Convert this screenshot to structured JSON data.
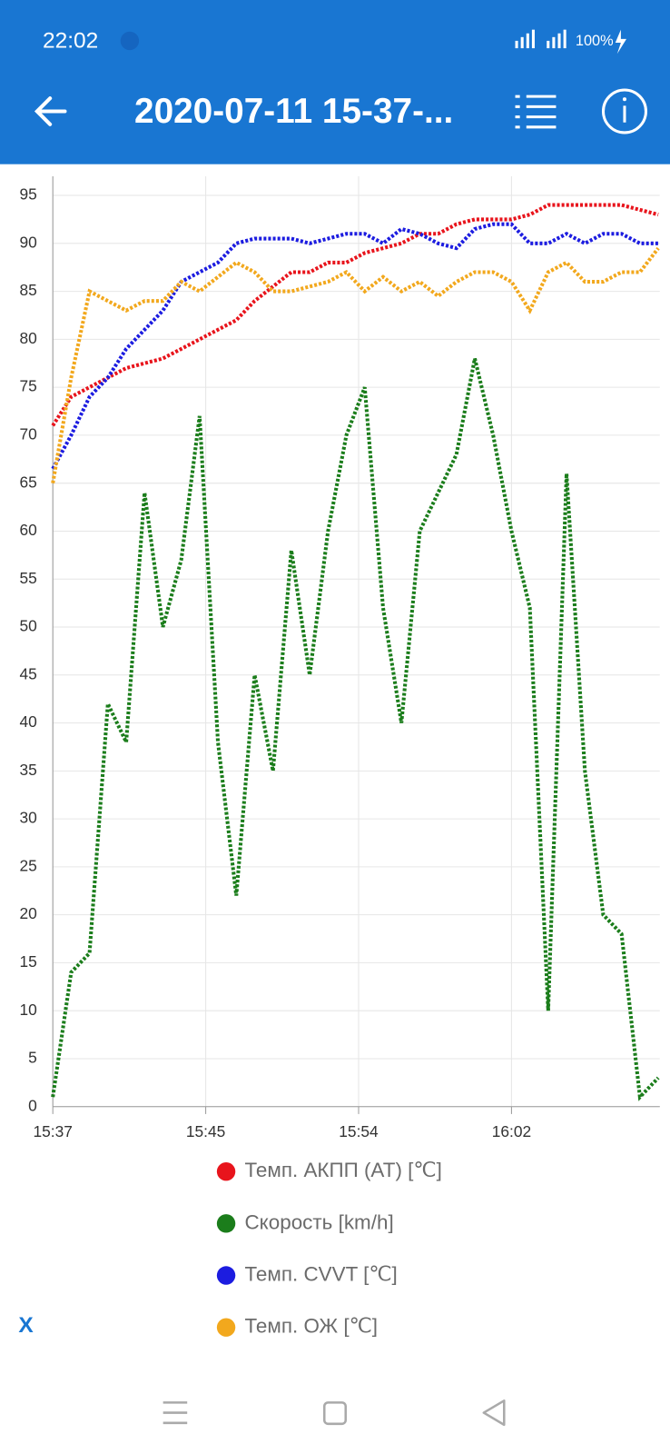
{
  "status_bar": {
    "time": "22:02",
    "battery": "100%"
  },
  "header": {
    "title": "2020-07-11 15-37-..."
  },
  "chart_data": {
    "type": "line",
    "x": [
      "15:37:30",
      "15:38:30",
      "15:39:30",
      "15:40:30",
      "15:41:30",
      "15:42:30",
      "15:43:30",
      "15:44:30",
      "15:45:30",
      "15:46:30",
      "15:47:30",
      "15:48:30",
      "15:49:30",
      "15:50:30",
      "15:51:30",
      "15:52:30",
      "15:53:30",
      "15:54:30",
      "15:55:30",
      "15:56:30",
      "15:57:30",
      "15:58:30",
      "15:59:30",
      "16:00:30",
      "16:01:30",
      "16:02:30",
      "16:03:30",
      "16:04:30",
      "16:05:30",
      "16:06:30",
      "16:07:30",
      "16:08:30",
      "16:09:30",
      "16:10:30"
    ],
    "series": [
      {
        "name": "Темп. АКПП (AT) [℃]",
        "color": "#e8141c",
        "values": [
          71,
          74,
          75,
          76,
          77,
          77.5,
          78,
          79,
          80,
          81,
          82,
          84,
          85.5,
          87,
          87,
          88,
          88,
          89,
          89.5,
          90,
          91,
          91,
          92,
          92.5,
          92.5,
          92.5,
          93,
          94,
          94,
          94,
          94,
          94,
          93.5,
          93
        ]
      },
      {
        "name": "Скорость [km/h]",
        "color": "#1b7d1b",
        "values": [
          1,
          14,
          16,
          42,
          38,
          64,
          50,
          57,
          72,
          38,
          22,
          45,
          35,
          58,
          45,
          60,
          70,
          75,
          52,
          40,
          60,
          64,
          68,
          78,
          70,
          60,
          52,
          10,
          66,
          35,
          20,
          18,
          1,
          3
        ]
      },
      {
        "name": "Темп. CVVT [℃]",
        "color": "#1c1ce0",
        "values": [
          66.5,
          70,
          74,
          76,
          79,
          81,
          83,
          86,
          87,
          88,
          90,
          90.5,
          90.5,
          90.5,
          90,
          90.5,
          91,
          91,
          90,
          91.5,
          91,
          90,
          89.5,
          91.5,
          92,
          92,
          90,
          90,
          91,
          90,
          91,
          91,
          90,
          90
        ]
      },
      {
        "name": "Темп. ОЖ [℃]",
        "color": "#f2a81d",
        "values": [
          65,
          76,
          85,
          84,
          83,
          84,
          84,
          86,
          85,
          86.5,
          88,
          87,
          85,
          85,
          85.5,
          86,
          87,
          85,
          86.5,
          85,
          86,
          84.5,
          86,
          87,
          87,
          86,
          83,
          87,
          88,
          86,
          86,
          87,
          87,
          89.5
        ]
      }
    ],
    "xlim": [
      "15:37:30",
      "16:10:35"
    ],
    "xticks": [
      {
        "value": "15:37:30",
        "label": "15:37"
      },
      {
        "value": "15:45:50",
        "label": "15:45"
      },
      {
        "value": "15:54:10",
        "label": "15:54"
      },
      {
        "value": "16:02:30",
        "label": "16:02"
      }
    ],
    "ylim": [
      0,
      97
    ],
    "yticks": [
      0,
      5,
      10,
      15,
      20,
      25,
      30,
      35,
      40,
      45,
      50,
      55,
      60,
      65,
      70,
      75,
      80,
      85,
      90,
      95
    ],
    "grid": true
  },
  "close_button": "X"
}
